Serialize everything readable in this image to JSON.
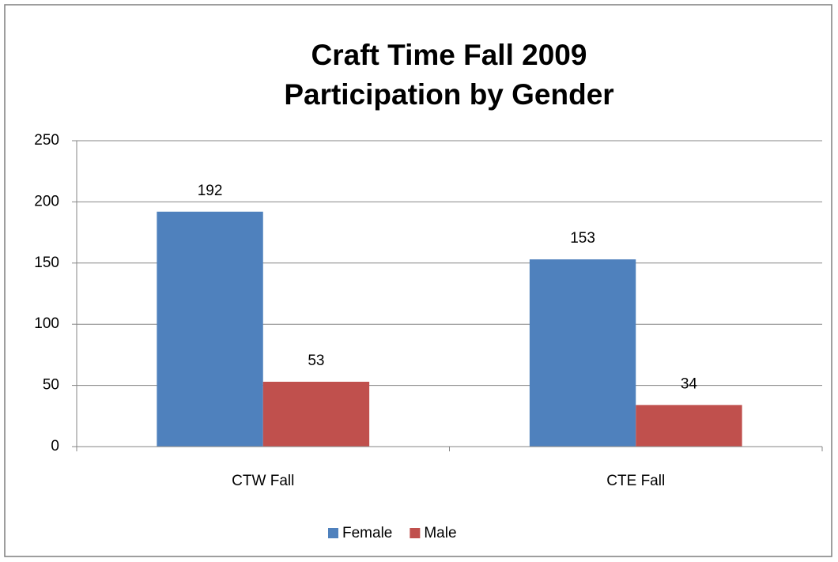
{
  "chart_data": {
    "type": "bar",
    "title": [
      "Craft Time Fall 2009",
      "Participation by Gender"
    ],
    "categories": [
      "CTW Fall",
      "CTE Fall"
    ],
    "series": [
      {
        "name": "Female",
        "color": "#4f81bd",
        "values": [
          192,
          153
        ]
      },
      {
        "name": "Male",
        "color": "#c0504d",
        "values": [
          53,
          34
        ]
      }
    ],
    "ylim": [
      0,
      250
    ],
    "yticks": [
      0,
      50,
      100,
      150,
      200,
      250
    ],
    "grid": true,
    "legend": "bottom"
  }
}
